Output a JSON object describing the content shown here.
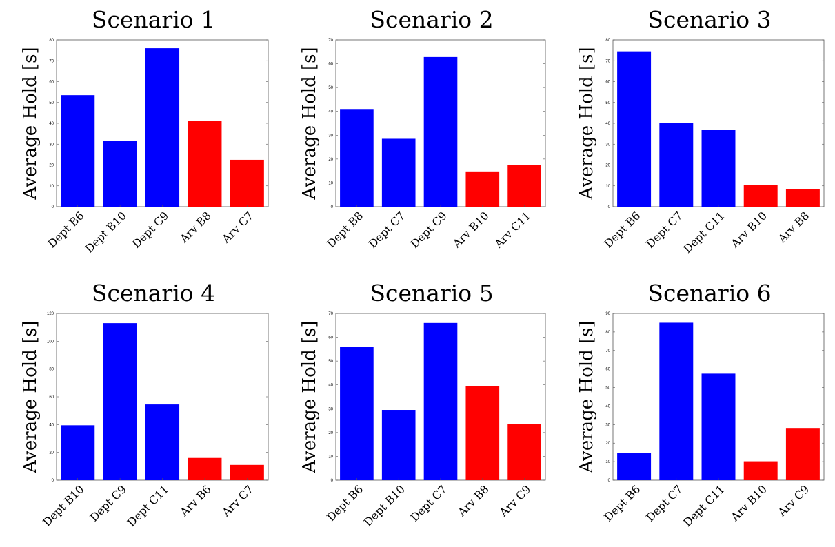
{
  "colors": {
    "departure": "#0000ff",
    "arrival": "#ff0000"
  },
  "chart_data": [
    {
      "type": "bar",
      "title": "Scenario 1",
      "ylabel": "Average Hold [s]",
      "ylim": [
        0,
        80
      ],
      "yticks": [
        0,
        10,
        20,
        30,
        40,
        50,
        60,
        70,
        80
      ],
      "categories": [
        "Dept B6",
        "Dept B10",
        "Dept C9",
        "Arv B8",
        "Arv C7"
      ],
      "values": [
        53.5,
        31.5,
        76,
        41,
        22.5
      ],
      "colors": [
        "#0000ff",
        "#0000ff",
        "#0000ff",
        "#ff0000",
        "#ff0000"
      ]
    },
    {
      "type": "bar",
      "title": "Scenario 2",
      "ylabel": "Average Hold [s]",
      "ylim": [
        0,
        70
      ],
      "yticks": [
        0,
        10,
        20,
        30,
        40,
        50,
        60,
        70
      ],
      "categories": [
        "Dept B8",
        "Dept C7",
        "Dept C9",
        "Arv B10",
        "Arv C11"
      ],
      "values": [
        41,
        28.5,
        62.8,
        14.8,
        17.5
      ],
      "colors": [
        "#0000ff",
        "#0000ff",
        "#0000ff",
        "#ff0000",
        "#ff0000"
      ]
    },
    {
      "type": "bar",
      "title": "Scenario 3",
      "ylabel": "Average Hold [s]",
      "ylim": [
        0,
        80
      ],
      "yticks": [
        0,
        10,
        20,
        30,
        40,
        50,
        60,
        70,
        80
      ],
      "categories": [
        "Dept B6",
        "Dept C7",
        "Dept C11",
        "Arv B10",
        "Arv B8"
      ],
      "values": [
        74.5,
        40.3,
        36.8,
        10.5,
        8.5
      ],
      "colors": [
        "#0000ff",
        "#0000ff",
        "#0000ff",
        "#ff0000",
        "#ff0000"
      ]
    },
    {
      "type": "bar",
      "title": "Scenario 4",
      "ylabel": "Average Hold [s]",
      "ylim": [
        0,
        120
      ],
      "yticks": [
        0,
        20,
        40,
        60,
        80,
        100,
        120
      ],
      "categories": [
        "Dept B10",
        "Dept C9",
        "Dept C11",
        "Arv B6",
        "Arv C7"
      ],
      "values": [
        39.5,
        113,
        54.5,
        16,
        11
      ],
      "colors": [
        "#0000ff",
        "#0000ff",
        "#0000ff",
        "#ff0000",
        "#ff0000"
      ]
    },
    {
      "type": "bar",
      "title": "Scenario 5",
      "ylabel": "Average Hold [s]",
      "ylim": [
        0,
        70
      ],
      "yticks": [
        0,
        10,
        20,
        30,
        40,
        50,
        60,
        70
      ],
      "categories": [
        "Dept B6",
        "Dept B10",
        "Dept C7",
        "Arv B8",
        "Arv C9"
      ],
      "values": [
        56,
        29.5,
        66,
        39.5,
        23.5
      ],
      "colors": [
        "#0000ff",
        "#0000ff",
        "#0000ff",
        "#ff0000",
        "#ff0000"
      ]
    },
    {
      "type": "bar",
      "title": "Scenario 6",
      "ylabel": "Average Hold [s]",
      "ylim": [
        0,
        90
      ],
      "yticks": [
        0,
        10,
        20,
        30,
        40,
        50,
        60,
        70,
        80,
        90
      ],
      "categories": [
        "Dept B6",
        "Dept C7",
        "Dept C11",
        "Arv B10",
        "Arv C9"
      ],
      "values": [
        14.8,
        85,
        57.5,
        10.2,
        28.2
      ],
      "colors": [
        "#0000ff",
        "#0000ff",
        "#0000ff",
        "#ff0000",
        "#ff0000"
      ]
    }
  ]
}
